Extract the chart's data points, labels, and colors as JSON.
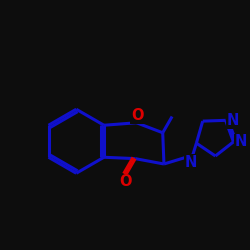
{
  "bg_color": "#0d0d0d",
  "bond_color": "#1010cc",
  "o_color": "#dd0000",
  "n_color": "#1010cc",
  "line_width": 2.2,
  "figsize": [
    2.5,
    2.5
  ],
  "dpi": 100,
  "xlim": [
    0,
    10
  ],
  "ylim": [
    0,
    10
  ],
  "font_size": 10.5
}
